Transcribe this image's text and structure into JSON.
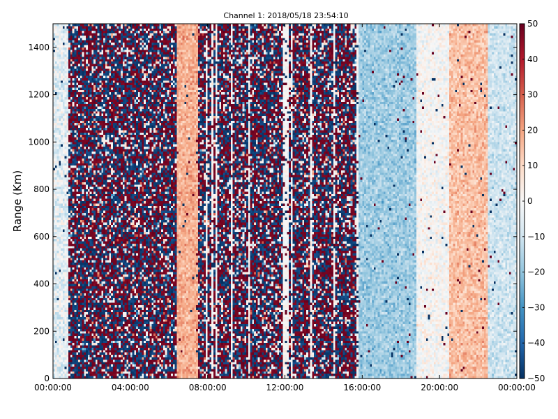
{
  "chart_data": {
    "type": "heatmap",
    "title": "Channel 1: 2018/05/18 23:54:10",
    "xlabel": "",
    "ylabel": "Range (Km)",
    "x_tick_labels": [
      "00:00:00",
      "04:00:00",
      "08:00:00",
      "12:00:00",
      "16:00:00",
      "20:00:00",
      "00:00:00"
    ],
    "x_range_hours": [
      0,
      24
    ],
    "y_ticks": [
      0,
      200,
      400,
      600,
      800,
      1000,
      1200,
      1400
    ],
    "ylim": [
      0,
      1500
    ],
    "colorbar": {
      "ticks": [
        50,
        40,
        30,
        20,
        10,
        0,
        -10,
        -20,
        -30,
        -40,
        -50
      ],
      "range": [
        -50,
        50
      ],
      "colormap": "RdBu_r",
      "colors": [
        "#053061",
        "#2166ac",
        "#4393c3",
        "#92c5de",
        "#d1e5f0",
        "#f7f7f7",
        "#fddbc7",
        "#f4a582",
        "#d6604d",
        "#b2182b",
        "#67001f"
      ]
    },
    "segments": [
      {
        "hours": [
          0.0,
          0.8
        ],
        "description": "light blue/white, low values",
        "approx_value_range": [
          -15,
          5
        ]
      },
      {
        "hours": [
          0.8,
          6.4
        ],
        "description": "noisy saturated alternating",
        "approx_value_range": [
          -50,
          50
        ]
      },
      {
        "hours": [
          6.4,
          7.5
        ],
        "description": "light red band",
        "approx_value": 18
      },
      {
        "hours": [
          7.5,
          15.8
        ],
        "description": "noisy with white stripes",
        "approx_value_range": [
          -50,
          50
        ]
      },
      {
        "hours": [
          15.8,
          18.8
        ],
        "description": "light blue band",
        "approx_value": -18
      },
      {
        "hours": [
          18.8,
          20.5
        ],
        "description": "near zero",
        "approx_value": 0
      },
      {
        "hours": [
          20.5,
          22.5
        ],
        "description": "light red band",
        "approx_value": 15
      },
      {
        "hours": [
          22.5,
          24.0
        ],
        "description": "light blue",
        "approx_value": -10
      }
    ],
    "grid": false
  }
}
